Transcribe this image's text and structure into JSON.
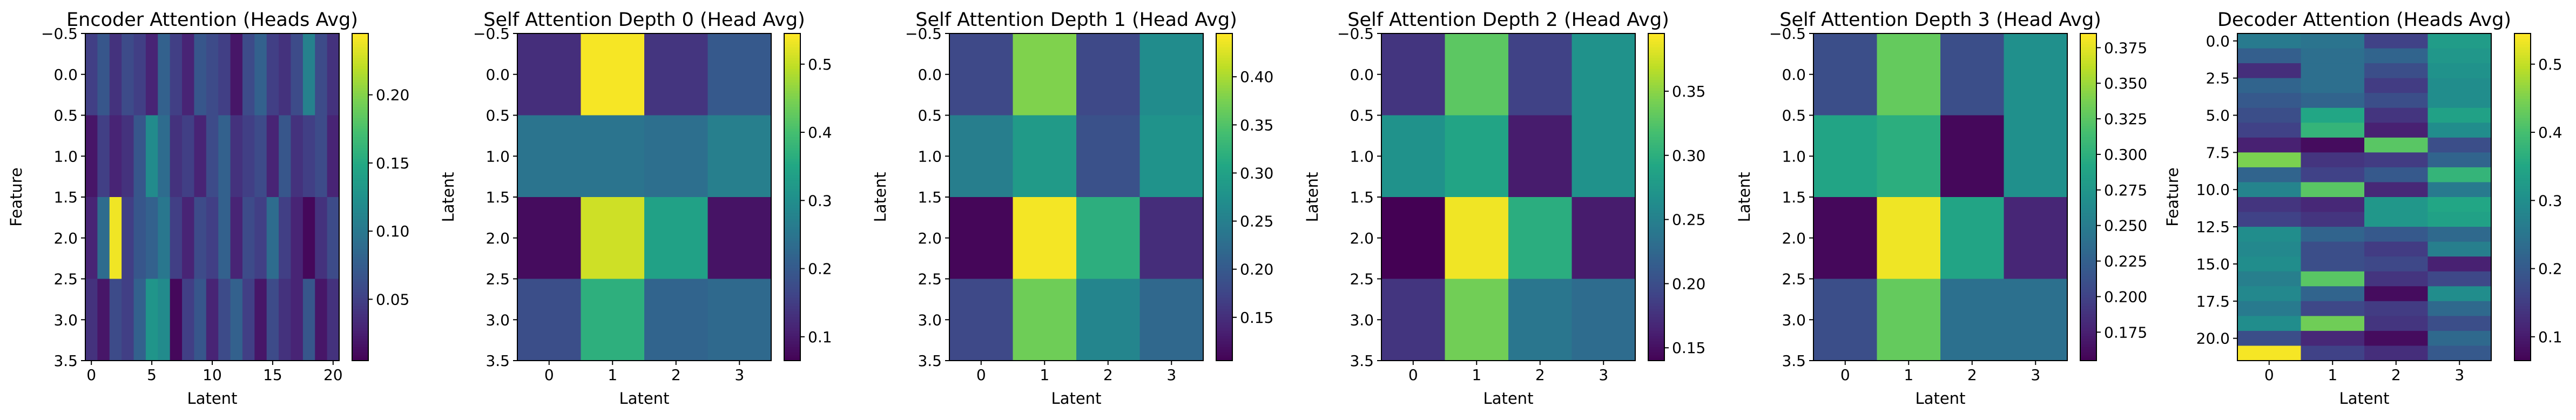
{
  "chart_data": [
    {
      "type": "heatmap",
      "title": "Encoder Attention (Heads Avg)",
      "xlabel": "Latent",
      "ylabel": "Feature",
      "x_ticks": [
        "0",
        "5",
        "10",
        "15",
        "20"
      ],
      "y_ticks": [
        "−0.5",
        "0.0",
        "0.5",
        "1.0",
        "1.5",
        "2.0",
        "2.5",
        "3.0",
        "3.5"
      ],
      "colorbar_ticks": [
        "0.05",
        "0.10",
        "0.15",
        "0.20"
      ],
      "vmin": 0.005,
      "vmax": 0.245,
      "values": [
        [
          0.05,
          0.07,
          0.04,
          0.06,
          0.05,
          0.03,
          0.08,
          0.05,
          0.03,
          0.07,
          0.06,
          0.05,
          0.02,
          0.06,
          0.08,
          0.05,
          0.04,
          0.06,
          0.11,
          0.06,
          0.04
        ],
        [
          0.02,
          0.05,
          0.03,
          0.04,
          0.07,
          0.12,
          0.09,
          0.04,
          0.05,
          0.03,
          0.06,
          0.08,
          0.04,
          0.05,
          0.06,
          0.03,
          0.07,
          0.04,
          0.05,
          0.06,
          0.03
        ],
        [
          0.03,
          0.09,
          0.24,
          0.05,
          0.07,
          0.08,
          0.1,
          0.05,
          0.03,
          0.06,
          0.05,
          0.08,
          0.03,
          0.06,
          0.05,
          0.09,
          0.05,
          0.03,
          0.01,
          0.04,
          0.06
        ],
        [
          0.04,
          0.02,
          0.06,
          0.05,
          0.08,
          0.13,
          0.12,
          0.01,
          0.05,
          0.07,
          0.03,
          0.06,
          0.08,
          0.05,
          0.02,
          0.06,
          0.04,
          0.03,
          0.07,
          0.02,
          0.04
        ]
      ]
    },
    {
      "type": "heatmap",
      "title": "Self Attention Depth 0 (Head Avg)",
      "xlabel": "Latent",
      "ylabel": "Latent",
      "x_ticks": [
        "0",
        "1",
        "2",
        "3"
      ],
      "y_ticks": [
        "−0.5",
        "0.0",
        "0.5",
        "1.0",
        "1.5",
        "2.0",
        "2.5",
        "3.0",
        "3.5"
      ],
      "colorbar_ticks": [
        "0.1",
        "0.2",
        "0.3",
        "0.4",
        "0.5"
      ],
      "vmin": 0.065,
      "vmax": 0.545,
      "values": [
        [
          0.13,
          0.54,
          0.14,
          0.2
        ],
        [
          0.25,
          0.25,
          0.24,
          0.27
        ],
        [
          0.08,
          0.51,
          0.34,
          0.09
        ],
        [
          0.18,
          0.37,
          0.22,
          0.23
        ]
      ]
    },
    {
      "type": "heatmap",
      "title": "Self Attention Depth 1 (Head Avg)",
      "xlabel": "Latent",
      "ylabel": "Latent",
      "x_ticks": [
        "0",
        "1",
        "2",
        "3"
      ],
      "y_ticks": [
        "−0.5",
        "0.0",
        "0.5",
        "1.0",
        "1.5",
        "2.0",
        "2.5",
        "3.0",
        "3.5"
      ],
      "colorbar_ticks": [
        "0.15",
        "0.20",
        "0.25",
        "0.30",
        "0.35",
        "0.40"
      ],
      "vmin": 0.105,
      "vmax": 0.445,
      "values": [
        [
          0.18,
          0.38,
          0.18,
          0.27
        ],
        [
          0.25,
          0.29,
          0.19,
          0.28
        ],
        [
          0.11,
          0.44,
          0.32,
          0.15
        ],
        [
          0.18,
          0.37,
          0.26,
          0.22
        ]
      ]
    },
    {
      "type": "heatmap",
      "title": "Self Attention Depth 2 (Head Avg)",
      "xlabel": "Latent",
      "ylabel": "Latent",
      "x_ticks": [
        "0",
        "1",
        "2",
        "3"
      ],
      "y_ticks": [
        "−0.5",
        "0.0",
        "0.5",
        "1.0",
        "1.5",
        "2.0",
        "2.5",
        "3.0",
        "3.5"
      ],
      "colorbar_ticks": [
        "0.15",
        "0.20",
        "0.25",
        "0.30",
        "0.35"
      ],
      "vmin": 0.14,
      "vmax": 0.395,
      "values": [
        [
          0.18,
          0.33,
          0.19,
          0.27
        ],
        [
          0.27,
          0.29,
          0.16,
          0.27
        ],
        [
          0.14,
          0.39,
          0.3,
          0.16
        ],
        [
          0.18,
          0.34,
          0.24,
          0.23
        ]
      ]
    },
    {
      "type": "heatmap",
      "title": "Self Attention Depth 3 (Head Avg)",
      "xlabel": "Latent",
      "ylabel": "Latent",
      "x_ticks": [
        "0",
        "1",
        "2",
        "3"
      ],
      "y_ticks": [
        "−0.5",
        "0.0",
        "0.5",
        "1.0",
        "1.5",
        "2.0",
        "2.5",
        "3.0",
        "3.5"
      ],
      "colorbar_ticks": [
        "0.175",
        "0.200",
        "0.225",
        "0.250",
        "0.275",
        "0.300",
        "0.325",
        "0.350",
        "0.375"
      ],
      "vmin": 0.155,
      "vmax": 0.385,
      "values": [
        [
          0.21,
          0.33,
          0.21,
          0.27
        ],
        [
          0.29,
          0.3,
          0.16,
          0.27
        ],
        [
          0.16,
          0.38,
          0.29,
          0.18
        ],
        [
          0.21,
          0.33,
          0.24,
          0.24
        ]
      ]
    },
    {
      "type": "heatmap",
      "title": "Decoder Attention (Heads Avg)",
      "xlabel": "Latent",
      "ylabel": "Feature",
      "x_ticks": [
        "0",
        "1",
        "2",
        "3"
      ],
      "y_ticks": [
        "0.0",
        "2.5",
        "5.0",
        "7.5",
        "10.0",
        "12.5",
        "15.0",
        "17.5",
        "20.0"
      ],
      "colorbar_ticks": [
        "0.1",
        "0.2",
        "0.3",
        "0.4",
        "0.5"
      ],
      "vmin": 0.065,
      "vmax": 0.545,
      "values": [
        [
          0.26,
          0.25,
          0.16,
          0.33
        ],
        [
          0.21,
          0.24,
          0.22,
          0.32
        ],
        [
          0.13,
          0.24,
          0.18,
          0.31
        ],
        [
          0.22,
          0.24,
          0.15,
          0.3
        ],
        [
          0.2,
          0.22,
          0.18,
          0.3
        ],
        [
          0.18,
          0.35,
          0.14,
          0.34
        ],
        [
          0.16,
          0.38,
          0.11,
          0.3
        ],
        [
          0.11,
          0.08,
          0.42,
          0.18
        ],
        [
          0.45,
          0.14,
          0.15,
          0.22
        ],
        [
          0.22,
          0.16,
          0.2,
          0.38
        ],
        [
          0.28,
          0.42,
          0.12,
          0.26
        ],
        [
          0.14,
          0.12,
          0.32,
          0.35
        ],
        [
          0.16,
          0.14,
          0.32,
          0.34
        ],
        [
          0.3,
          0.22,
          0.2,
          0.23
        ],
        [
          0.29,
          0.18,
          0.15,
          0.27
        ],
        [
          0.3,
          0.18,
          0.17,
          0.11
        ],
        [
          0.27,
          0.42,
          0.14,
          0.17
        ],
        [
          0.29,
          0.22,
          0.08,
          0.3
        ],
        [
          0.26,
          0.17,
          0.15,
          0.23
        ],
        [
          0.3,
          0.44,
          0.14,
          0.18
        ],
        [
          0.18,
          0.12,
          0.08,
          0.23
        ],
        [
          0.54,
          0.16,
          0.13,
          0.2
        ]
      ]
    }
  ]
}
